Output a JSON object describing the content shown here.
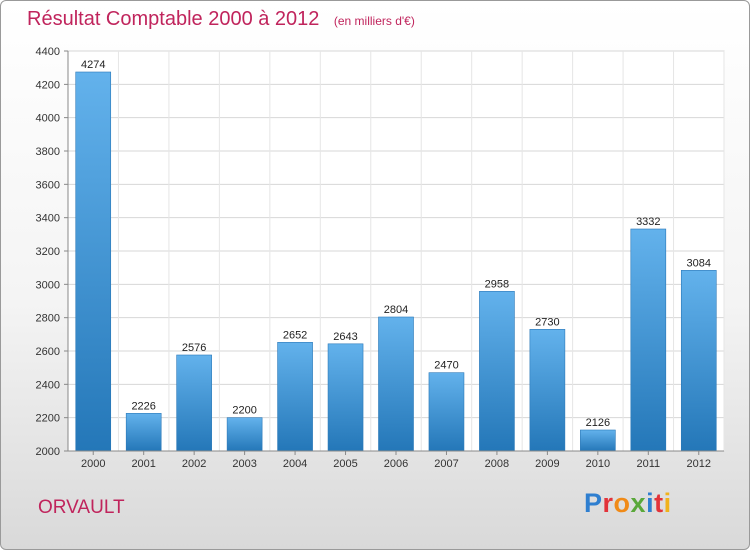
{
  "chart_data": {
    "type": "bar",
    "title": "Résultat Comptable 2000 à 2012",
    "subtitle": "(en milliers d'€)",
    "categories": [
      "2000",
      "2001",
      "2002",
      "2003",
      "2004",
      "2005",
      "2006",
      "2007",
      "2008",
      "2009",
      "2010",
      "2011",
      "2012"
    ],
    "values": [
      4274,
      2226,
      2576,
      2200,
      2652,
      2643,
      2804,
      2470,
      2958,
      2730,
      2126,
      3332,
      3084
    ],
    "ylim": [
      2000,
      4400
    ],
    "yticks": [
      2000,
      2200,
      2400,
      2600,
      2800,
      3000,
      3200,
      3400,
      3600,
      3800,
      4000,
      4200,
      4400
    ],
    "xlabel": "",
    "ylabel": "",
    "grid": true,
    "bar_color": "#3a95dc",
    "title_color": "#c0245c"
  },
  "footer": {
    "commune": "ORVAULT",
    "logo": "Proxiti"
  }
}
